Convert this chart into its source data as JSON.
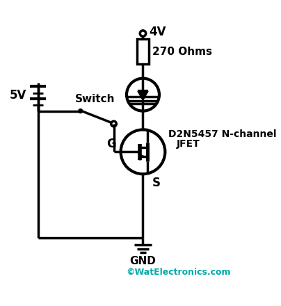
{
  "bg_color": "#ffffff",
  "line_color": "#000000",
  "cyan_color": "#00AAAA",
  "watermark": "©WatElectronics.com",
  "label_4v": "4V",
  "label_270": "270 Ohms",
  "label_5v": "5V",
  "label_gnd": "GND",
  "label_switch": "Switch",
  "label_G": "G",
  "label_S": "S",
  "label_jfet_line1": "D2N5457 N-channel",
  "label_jfet_line2": "JFET",
  "lw": 2.5
}
